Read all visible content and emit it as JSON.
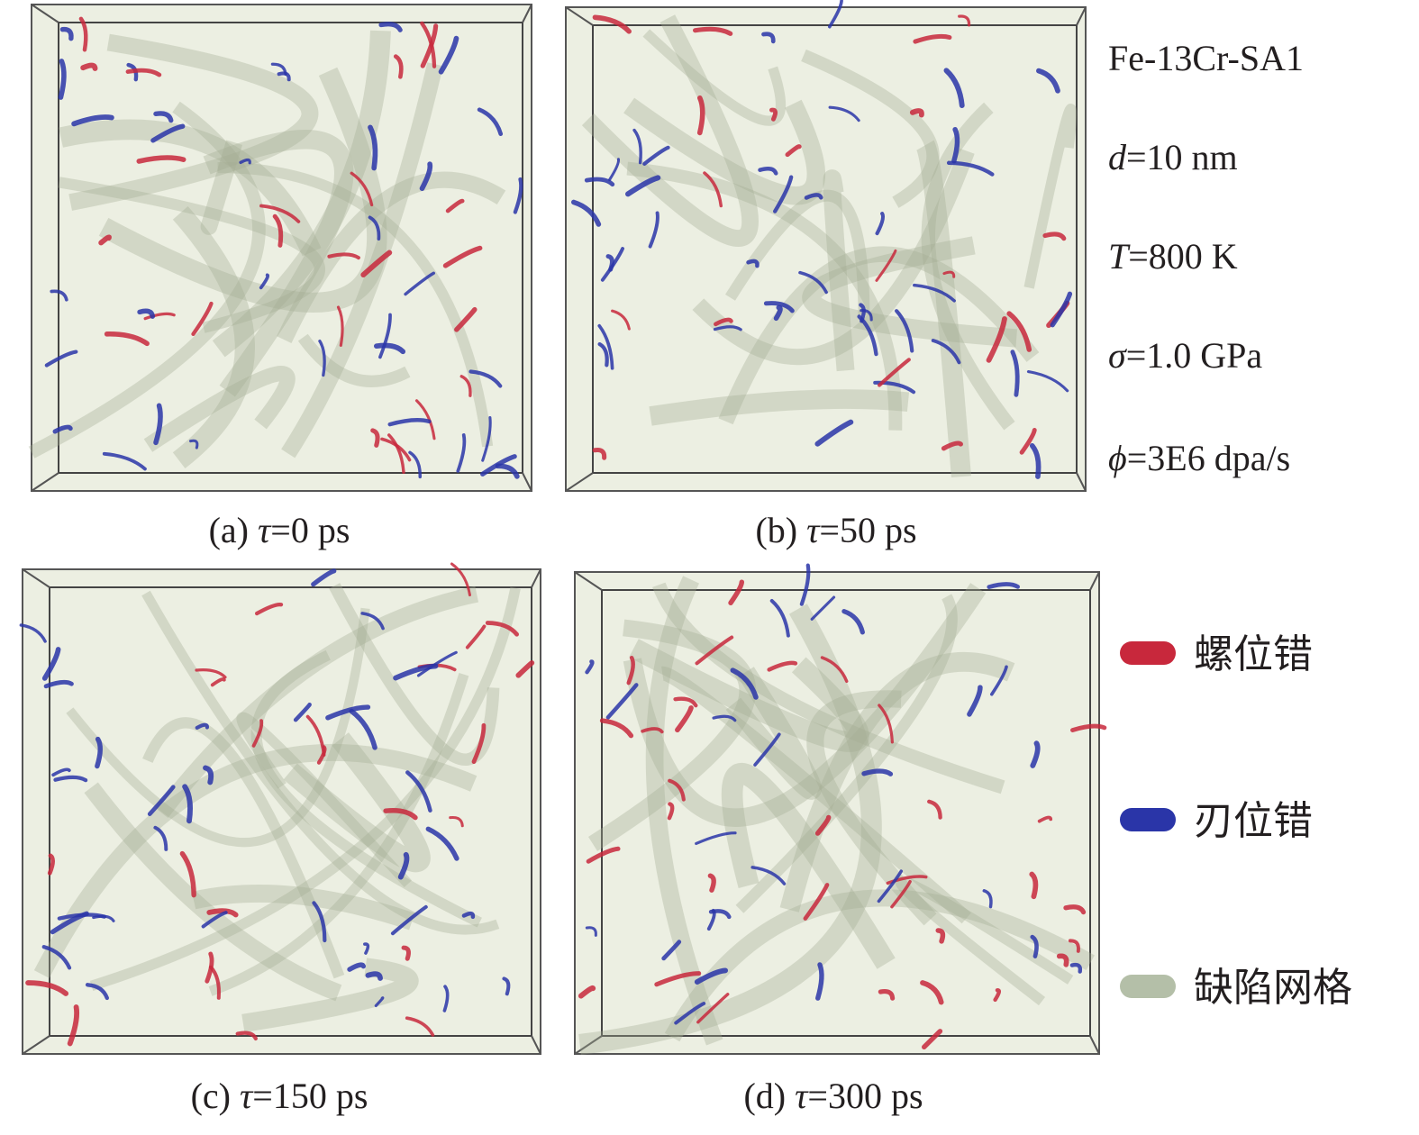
{
  "panels": [
    {
      "label": "(a)",
      "symbol": "τ",
      "rest": "=0 ps"
    },
    {
      "label": "(b)",
      "symbol": "τ",
      "rest": "=50 ps"
    },
    {
      "label": "(c)",
      "symbol": "τ",
      "rest": "=150 ps"
    },
    {
      "label": "(d)",
      "symbol": "τ",
      "rest": "=300 ps"
    }
  ],
  "conditions": {
    "title": "Fe-13Cr-SA1",
    "params": [
      {
        "symbol": "d",
        "rest": "=10 nm"
      },
      {
        "symbol": "T",
        "rest": "=800 K"
      },
      {
        "symbol": "σ",
        "rest": "=1.0 GPa"
      },
      {
        "symbol": "ϕ",
        "rest": "=3E6 dpa/s"
      }
    ]
  },
  "legend": [
    {
      "label": "螺位错",
      "color": "#c8283c"
    },
    {
      "label": "刃位错",
      "color": "#2a35a8"
    },
    {
      "label": "缺陷网格",
      "color": "#b4bfa8"
    }
  ]
}
